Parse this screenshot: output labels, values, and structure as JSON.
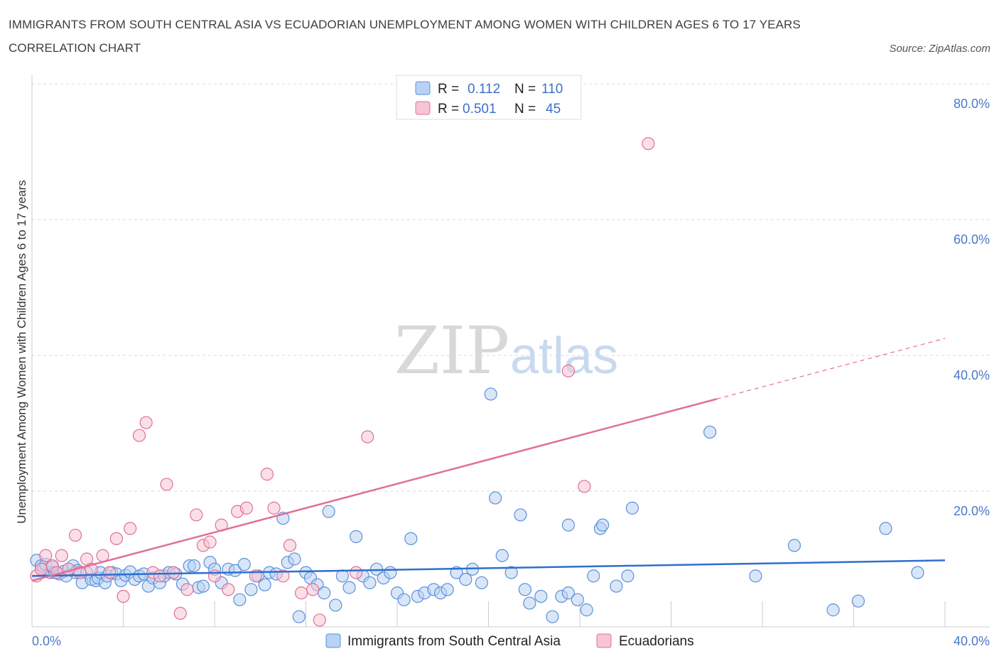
{
  "title": "IMMIGRANTS FROM SOUTH CENTRAL ASIA VS ECUADORIAN UNEMPLOYMENT AMONG WOMEN WITH CHILDREN AGES 6 TO 17 YEARS CORRELATION CHART",
  "source": "Source: ZipAtlas.com",
  "watermark": {
    "zip": "ZIP",
    "atlas": "atlas"
  },
  "colors": {
    "blue": "#5b8fdb",
    "blue_fill": "#b9d1f3",
    "pink": "#e07098",
    "pink_fill": "#f6c4d4",
    "blue_line": "#2f6fce",
    "pink_line": "#e07098"
  },
  "legend": {
    "rows": [
      {
        "r_label": "R =",
        "r_value": "0.112",
        "n_label": "N =",
        "n_value": "110"
      },
      {
        "r_label": "R =",
        "r_value": "0.501",
        "n_label": "N =",
        "n_value": "45"
      }
    ]
  },
  "chart_data": {
    "type": "scatter",
    "title": "IMMIGRANTS FROM SOUTH CENTRAL ASIA VS ECUADORIAN UNEMPLOYMENT AMONG WOMEN WITH CHILDREN AGES 6 TO 17 YEARS CORRELATION CHART",
    "xlabel": "",
    "ylabel": "Unemployment Among Women with Children Ages 6 to 17 years",
    "xlim": [
      0,
      40
    ],
    "ylim": [
      0,
      80
    ],
    "x_tick_labels": [
      "0.0%",
      "40.0%"
    ],
    "y_tick_values": [
      20,
      40,
      60,
      80
    ],
    "y_tick_labels": [
      "20.0%",
      "40.0%",
      "60.0%",
      "80.0%"
    ],
    "grid": true,
    "series": [
      {
        "name": "Immigrants from South Central Asia",
        "color": "blue",
        "R": 0.112,
        "N": 110,
        "trend": {
          "x": [
            0,
            40
          ],
          "y": [
            7.5,
            9.8
          ],
          "dashed_from": null
        },
        "points": [
          [
            0.2,
            9.8
          ],
          [
            0.4,
            9.0
          ],
          [
            0.5,
            8.5
          ],
          [
            0.6,
            9.2
          ],
          [
            0.8,
            8.0
          ],
          [
            0.9,
            8.8
          ],
          [
            1.0,
            8.0
          ],
          [
            1.2,
            7.8
          ],
          [
            1.4,
            8.2
          ],
          [
            1.5,
            7.5
          ],
          [
            1.6,
            8.5
          ],
          [
            1.8,
            9.0
          ],
          [
            1.9,
            8.0
          ],
          [
            2.0,
            8.3
          ],
          [
            2.2,
            6.5
          ],
          [
            2.4,
            8.0
          ],
          [
            2.6,
            7.0
          ],
          [
            2.8,
            6.8
          ],
          [
            2.9,
            7.2
          ],
          [
            3.0,
            8.0
          ],
          [
            3.2,
            6.5
          ],
          [
            3.3,
            7.5
          ],
          [
            3.5,
            8.0
          ],
          [
            3.7,
            7.8
          ],
          [
            3.9,
            6.8
          ],
          [
            4.1,
            7.6
          ],
          [
            4.3,
            8.1
          ],
          [
            4.5,
            7.0
          ],
          [
            4.7,
            7.5
          ],
          [
            4.9,
            7.8
          ],
          [
            5.1,
            6.0
          ],
          [
            5.3,
            7.2
          ],
          [
            5.6,
            6.5
          ],
          [
            5.8,
            7.5
          ],
          [
            6.0,
            8.0
          ],
          [
            6.3,
            7.8
          ],
          [
            6.6,
            6.3
          ],
          [
            6.9,
            9.0
          ],
          [
            7.1,
            9.0
          ],
          [
            7.3,
            5.8
          ],
          [
            7.5,
            6.0
          ],
          [
            7.8,
            9.5
          ],
          [
            8.0,
            8.5
          ],
          [
            8.3,
            6.5
          ],
          [
            8.6,
            8.5
          ],
          [
            8.9,
            8.3
          ],
          [
            9.1,
            4.0
          ],
          [
            9.3,
            9.2
          ],
          [
            9.6,
            5.5
          ],
          [
            9.9,
            7.5
          ],
          [
            10.2,
            6.2
          ],
          [
            10.4,
            8.0
          ],
          [
            10.7,
            7.8
          ],
          [
            11.0,
            16.0
          ],
          [
            11.2,
            9.5
          ],
          [
            11.5,
            10.0
          ],
          [
            11.7,
            1.5
          ],
          [
            12.0,
            8.0
          ],
          [
            12.2,
            7.2
          ],
          [
            12.5,
            6.2
          ],
          [
            12.8,
            5.0
          ],
          [
            13.0,
            17.0
          ],
          [
            13.3,
            3.2
          ],
          [
            13.6,
            7.5
          ],
          [
            13.9,
            5.8
          ],
          [
            14.2,
            13.3
          ],
          [
            14.5,
            7.5
          ],
          [
            14.8,
            6.5
          ],
          [
            15.1,
            8.5
          ],
          [
            15.4,
            7.2
          ],
          [
            15.7,
            8.0
          ],
          [
            16.0,
            5.0
          ],
          [
            16.3,
            4.0
          ],
          [
            16.6,
            13.0
          ],
          [
            16.9,
            4.5
          ],
          [
            17.2,
            5.0
          ],
          [
            17.6,
            5.5
          ],
          [
            17.9,
            5.0
          ],
          [
            18.2,
            5.5
          ],
          [
            18.6,
            8.0
          ],
          [
            19.0,
            7.0
          ],
          [
            19.3,
            8.5
          ],
          [
            19.7,
            6.5
          ],
          [
            20.1,
            34.3
          ],
          [
            20.3,
            19.0
          ],
          [
            20.6,
            10.5
          ],
          [
            21.0,
            8.0
          ],
          [
            21.4,
            16.5
          ],
          [
            21.6,
            5.5
          ],
          [
            21.8,
            3.5
          ],
          [
            22.3,
            4.5
          ],
          [
            22.8,
            1.5
          ],
          [
            23.2,
            4.5
          ],
          [
            23.5,
            5.0
          ],
          [
            23.9,
            4.0
          ],
          [
            24.3,
            2.5
          ],
          [
            24.6,
            7.5
          ],
          [
            24.9,
            14.5
          ],
          [
            25.0,
            15.0
          ],
          [
            25.6,
            6.0
          ],
          [
            26.1,
            7.5
          ],
          [
            26.3,
            17.5
          ],
          [
            29.7,
            28.7
          ],
          [
            31.7,
            7.5
          ],
          [
            33.4,
            12.0
          ],
          [
            35.1,
            2.5
          ],
          [
            36.2,
            3.8
          ],
          [
            37.4,
            14.5
          ],
          [
            38.8,
            8.0
          ],
          [
            23.5,
            15.0
          ]
        ]
      },
      {
        "name": "Ecuadorians",
        "color": "pink",
        "R": 0.501,
        "N": 45,
        "trend": {
          "x": [
            0,
            40
          ],
          "y": [
            6.8,
            42.5
          ],
          "dashed_from": 30
        },
        "points": [
          [
            0.2,
            7.5
          ],
          [
            0.4,
            8.5
          ],
          [
            0.6,
            10.5
          ],
          [
            0.9,
            9.0
          ],
          [
            1.1,
            8.0
          ],
          [
            1.3,
            10.5
          ],
          [
            1.6,
            8.5
          ],
          [
            1.9,
            13.5
          ],
          [
            2.1,
            8.0
          ],
          [
            2.4,
            10.0
          ],
          [
            2.6,
            8.5
          ],
          [
            3.1,
            10.5
          ],
          [
            3.4,
            8.0
          ],
          [
            3.7,
            13.0
          ],
          [
            4.0,
            4.5
          ],
          [
            4.3,
            14.5
          ],
          [
            4.7,
            28.2
          ],
          [
            5.0,
            30.1
          ],
          [
            5.3,
            8.0
          ],
          [
            5.6,
            7.5
          ],
          [
            5.9,
            21.0
          ],
          [
            6.2,
            8.0
          ],
          [
            6.5,
            2.0
          ],
          [
            6.8,
            5.5
          ],
          [
            7.2,
            16.5
          ],
          [
            7.5,
            12.0
          ],
          [
            7.8,
            12.5
          ],
          [
            8.0,
            7.5
          ],
          [
            8.3,
            15.0
          ],
          [
            8.6,
            5.5
          ],
          [
            9.0,
            17.0
          ],
          [
            9.4,
            17.5
          ],
          [
            9.8,
            7.5
          ],
          [
            10.3,
            22.5
          ],
          [
            10.6,
            17.5
          ],
          [
            11.0,
            7.5
          ],
          [
            11.3,
            12.0
          ],
          [
            11.8,
            5.0
          ],
          [
            12.3,
            5.5
          ],
          [
            12.6,
            1.0
          ],
          [
            14.2,
            8.0
          ],
          [
            14.7,
            28.0
          ],
          [
            23.5,
            37.7
          ],
          [
            24.2,
            20.7
          ],
          [
            27.0,
            71.2
          ]
        ]
      }
    ]
  }
}
